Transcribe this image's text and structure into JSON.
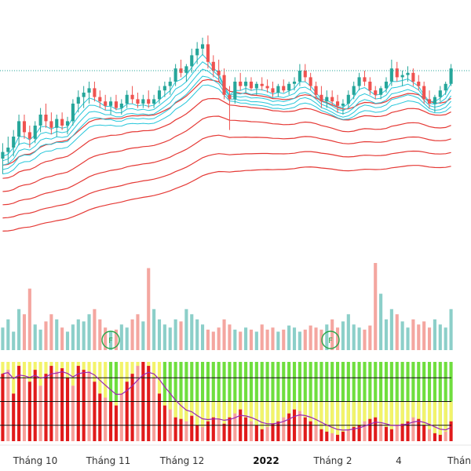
{
  "chart_data": [
    {
      "type": "candlestick",
      "panel": "price",
      "price_range": [
        0,
        100
      ],
      "last_price_line": 75,
      "colors": {
        "up": "#26a69a",
        "down": "#ef5350",
        "ema_fast": "#26c6da",
        "ema_slow": "#e53935",
        "last_price_line": "#26a69a"
      },
      "candles": [
        {
          "o": 35,
          "h": 42,
          "l": 28,
          "c": 38
        },
        {
          "o": 38,
          "h": 45,
          "l": 33,
          "c": 40
        },
        {
          "o": 40,
          "h": 48,
          "l": 36,
          "c": 45
        },
        {
          "o": 45,
          "h": 55,
          "l": 41,
          "c": 52
        },
        {
          "o": 52,
          "h": 55,
          "l": 44,
          "c": 47
        },
        {
          "o": 47,
          "h": 50,
          "l": 40,
          "c": 44
        },
        {
          "o": 44,
          "h": 52,
          "l": 42,
          "c": 50
        },
        {
          "o": 50,
          "h": 58,
          "l": 47,
          "c": 55
        },
        {
          "o": 55,
          "h": 60,
          "l": 49,
          "c": 52
        },
        {
          "o": 52,
          "h": 56,
          "l": 46,
          "c": 49
        },
        {
          "o": 49,
          "h": 55,
          "l": 45,
          "c": 53
        },
        {
          "o": 53,
          "h": 56,
          "l": 48,
          "c": 50
        },
        {
          "o": 50,
          "h": 54,
          "l": 46,
          "c": 52
        },
        {
          "o": 52,
          "h": 62,
          "l": 50,
          "c": 60
        },
        {
          "o": 60,
          "h": 66,
          "l": 56,
          "c": 63
        },
        {
          "o": 63,
          "h": 68,
          "l": 58,
          "c": 65
        },
        {
          "o": 65,
          "h": 70,
          "l": 60,
          "c": 67
        },
        {
          "o": 67,
          "h": 70,
          "l": 61,
          "c": 63
        },
        {
          "o": 63,
          "h": 66,
          "l": 58,
          "c": 61
        },
        {
          "o": 61,
          "h": 64,
          "l": 57,
          "c": 59
        },
        {
          "o": 59,
          "h": 63,
          "l": 55,
          "c": 61
        },
        {
          "o": 61,
          "h": 64,
          "l": 57,
          "c": 58
        },
        {
          "o": 58,
          "h": 62,
          "l": 55,
          "c": 60
        },
        {
          "o": 60,
          "h": 66,
          "l": 58,
          "c": 64
        },
        {
          "o": 64,
          "h": 68,
          "l": 60,
          "c": 62
        },
        {
          "o": 62,
          "h": 65,
          "l": 58,
          "c": 60
        },
        {
          "o": 60,
          "h": 64,
          "l": 58,
          "c": 62
        },
        {
          "o": 62,
          "h": 66,
          "l": 58,
          "c": 60
        },
        {
          "o": 60,
          "h": 64,
          "l": 58,
          "c": 62
        },
        {
          "o": 62,
          "h": 68,
          "l": 60,
          "c": 66
        },
        {
          "o": 66,
          "h": 70,
          "l": 63,
          "c": 68
        },
        {
          "o": 68,
          "h": 72,
          "l": 64,
          "c": 70
        },
        {
          "o": 70,
          "h": 78,
          "l": 68,
          "c": 76
        },
        {
          "o": 76,
          "h": 80,
          "l": 72,
          "c": 74
        },
        {
          "o": 74,
          "h": 78,
          "l": 70,
          "c": 77
        },
        {
          "o": 77,
          "h": 85,
          "l": 74,
          "c": 82
        },
        {
          "o": 82,
          "h": 88,
          "l": 78,
          "c": 85
        },
        {
          "o": 85,
          "h": 90,
          "l": 82,
          "c": 87
        },
        {
          "o": 87,
          "h": 91,
          "l": 76,
          "c": 79
        },
        {
          "o": 79,
          "h": 82,
          "l": 72,
          "c": 75
        },
        {
          "o": 75,
          "h": 80,
          "l": 70,
          "c": 73
        },
        {
          "o": 73,
          "h": 76,
          "l": 62,
          "c": 64
        },
        {
          "o": 64,
          "h": 68,
          "l": 48,
          "c": 62
        },
        {
          "o": 62,
          "h": 72,
          "l": 60,
          "c": 70
        },
        {
          "o": 70,
          "h": 74,
          "l": 66,
          "c": 68
        },
        {
          "o": 68,
          "h": 72,
          "l": 65,
          "c": 70
        },
        {
          "o": 70,
          "h": 72,
          "l": 66,
          "c": 67
        },
        {
          "o": 67,
          "h": 70,
          "l": 64,
          "c": 69
        },
        {
          "o": 69,
          "h": 72,
          "l": 66,
          "c": 68
        },
        {
          "o": 68,
          "h": 71,
          "l": 65,
          "c": 67
        },
        {
          "o": 67,
          "h": 70,
          "l": 63,
          "c": 65
        },
        {
          "o": 65,
          "h": 69,
          "l": 63,
          "c": 68
        },
        {
          "o": 68,
          "h": 71,
          "l": 65,
          "c": 66
        },
        {
          "o": 66,
          "h": 70,
          "l": 64,
          "c": 69
        },
        {
          "o": 69,
          "h": 72,
          "l": 66,
          "c": 70
        },
        {
          "o": 70,
          "h": 78,
          "l": 68,
          "c": 75
        },
        {
          "o": 75,
          "h": 78,
          "l": 70,
          "c": 72
        },
        {
          "o": 72,
          "h": 74,
          "l": 66,
          "c": 68
        },
        {
          "o": 68,
          "h": 70,
          "l": 62,
          "c": 64
        },
        {
          "o": 64,
          "h": 68,
          "l": 58,
          "c": 61
        },
        {
          "o": 61,
          "h": 66,
          "l": 58,
          "c": 63
        },
        {
          "o": 63,
          "h": 66,
          "l": 59,
          "c": 61
        },
        {
          "o": 61,
          "h": 64,
          "l": 56,
          "c": 59
        },
        {
          "o": 59,
          "h": 62,
          "l": 55,
          "c": 60
        },
        {
          "o": 60,
          "h": 66,
          "l": 58,
          "c": 64
        },
        {
          "o": 64,
          "h": 70,
          "l": 62,
          "c": 68
        },
        {
          "o": 68,
          "h": 74,
          "l": 66,
          "c": 72
        },
        {
          "o": 72,
          "h": 75,
          "l": 68,
          "c": 70
        },
        {
          "o": 70,
          "h": 72,
          "l": 64,
          "c": 66
        },
        {
          "o": 66,
          "h": 68,
          "l": 62,
          "c": 64
        },
        {
          "o": 64,
          "h": 68,
          "l": 62,
          "c": 67
        },
        {
          "o": 67,
          "h": 72,
          "l": 65,
          "c": 70
        },
        {
          "o": 70,
          "h": 80,
          "l": 68,
          "c": 76
        },
        {
          "o": 76,
          "h": 79,
          "l": 70,
          "c": 72
        },
        {
          "o": 72,
          "h": 75,
          "l": 68,
          "c": 73
        },
        {
          "o": 73,
          "h": 77,
          "l": 70,
          "c": 74
        },
        {
          "o": 74,
          "h": 76,
          "l": 68,
          "c": 70
        },
        {
          "o": 70,
          "h": 73,
          "l": 66,
          "c": 68
        },
        {
          "o": 68,
          "h": 70,
          "l": 60,
          "c": 62
        },
        {
          "o": 62,
          "h": 66,
          "l": 58,
          "c": 60
        },
        {
          "o": 60,
          "h": 64,
          "l": 56,
          "c": 63
        },
        {
          "o": 63,
          "h": 68,
          "l": 61,
          "c": 66
        },
        {
          "o": 66,
          "h": 70,
          "l": 64,
          "c": 69
        },
        {
          "o": 69,
          "h": 78,
          "l": 68,
          "c": 76
        }
      ],
      "ema_fast_offsets": [
        -2,
        -4,
        -6,
        -8,
        -10
      ],
      "ema_slow_offsets": [
        -6,
        -12,
        -18,
        -24,
        -30,
        -36
      ]
    },
    {
      "type": "bar",
      "panel": "volume",
      "values": [
        22,
        30,
        18,
        40,
        35,
        60,
        25,
        20,
        28,
        35,
        30,
        22,
        18,
        25,
        30,
        28,
        35,
        40,
        30,
        22,
        18,
        20,
        25,
        22,
        30,
        35,
        28,
        80,
        40,
        30,
        25,
        22,
        30,
        28,
        40,
        35,
        30,
        25,
        20,
        18,
        22,
        30,
        25,
        20,
        18,
        22,
        20,
        18,
        25,
        20,
        22,
        18,
        20,
        24,
        22,
        18,
        20,
        24,
        22,
        20,
        25,
        30,
        22,
        28,
        35,
        25,
        22,
        20,
        24,
        85,
        55,
        30,
        40,
        35,
        28,
        22,
        30,
        25,
        28,
        22,
        30,
        25,
        22,
        40
      ],
      "down_color": "#f4a6a0",
      "up_color": "#8ccfc9"
    },
    {
      "type": "bar",
      "panel": "indicator",
      "values": [
        85,
        90,
        60,
        95,
        80,
        75,
        90,
        70,
        85,
        95,
        88,
        92,
        80,
        70,
        95,
        90,
        88,
        75,
        60,
        55,
        50,
        45,
        60,
        75,
        85,
        95,
        100,
        95,
        80,
        60,
        45,
        40,
        30,
        28,
        25,
        32,
        20,
        18,
        25,
        30,
        28,
        22,
        30,
        35,
        40,
        30,
        25,
        20,
        15,
        18,
        22,
        25,
        30,
        35,
        40,
        38,
        30,
        25,
        20,
        15,
        12,
        10,
        8,
        12,
        15,
        18,
        20,
        25,
        28,
        30,
        22,
        18,
        15,
        20,
        22,
        25,
        30,
        28,
        20,
        15,
        10,
        8,
        12,
        25
      ],
      "levels": [
        80,
        50,
        20
      ],
      "colors": {
        "high": "#e11b1b",
        "high_light": "#f7a09a",
        "mid": "#f3f36a",
        "low": "#6fde3e",
        "signal_line": "#9b27b0",
        "level_line": "#111111"
      }
    }
  ],
  "x_axis": {
    "labels": [
      "Tháng 10",
      "Tháng 11",
      "Tháng 12",
      "2022",
      "Tháng 2",
      "4",
      "Thán"
    ],
    "bold_label": "2022"
  },
  "markers": [
    {
      "label": "F",
      "color": "#2aa84a"
    },
    {
      "label": "F",
      "color": "#2aa84a"
    }
  ]
}
